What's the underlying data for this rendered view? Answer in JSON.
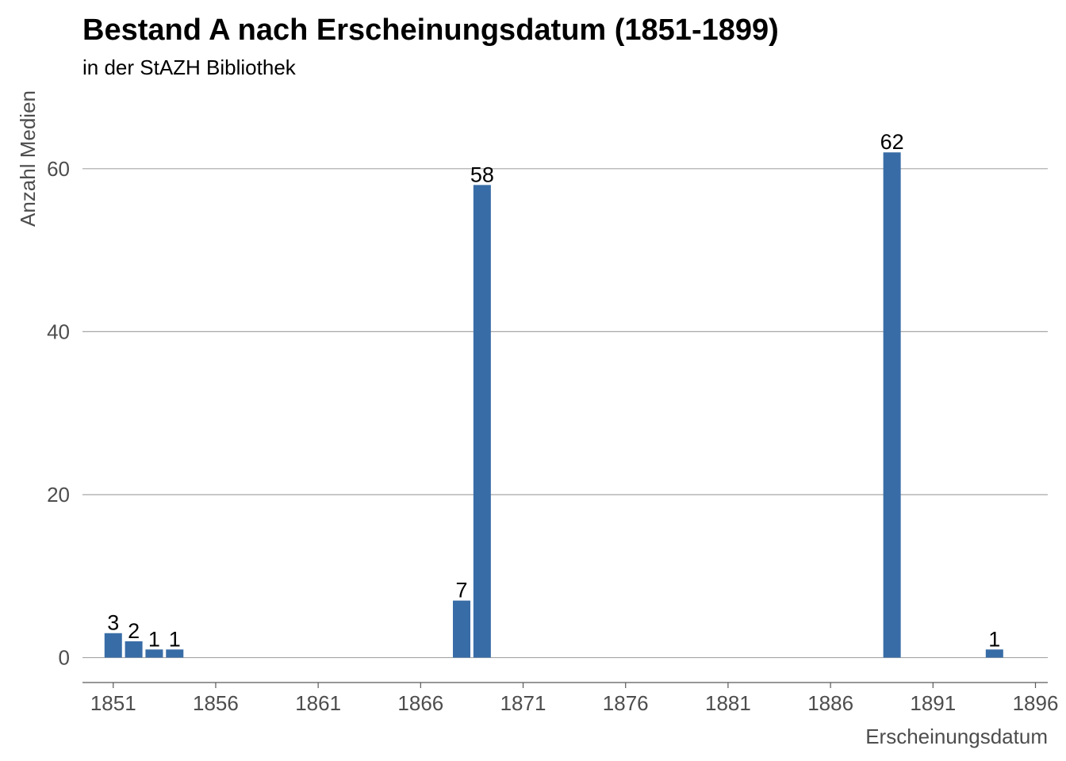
{
  "chart_data": {
    "type": "bar",
    "title": "Bestand A nach Erscheinungsdatum (1851-1899)",
    "subtitle": "in der StAZH Bibliothek",
    "xlabel": "Erscheinungsdatum",
    "ylabel": "Anzahl Medien",
    "x": [
      1851,
      1852,
      1853,
      1854,
      1868,
      1869,
      1889,
      1894
    ],
    "values": [
      3,
      2,
      1,
      1,
      7,
      58,
      62,
      1
    ],
    "data_labels": [
      "3",
      "2",
      "1",
      "1",
      "7",
      "58",
      "62",
      "1"
    ],
    "xlim": [
      1849.5,
      1896.6
    ],
    "ylim": [
      -1.5,
      70
    ],
    "x_ticks": [
      1851,
      1856,
      1861,
      1866,
      1871,
      1876,
      1881,
      1886,
      1891,
      1896
    ],
    "x_tick_labels": [
      "1851",
      "1856",
      "1861",
      "1866",
      "1871",
      "1876",
      "1881",
      "1886",
      "1891",
      "1896"
    ],
    "y_ticks": [
      0,
      20,
      40,
      60
    ],
    "y_tick_labels": [
      "0",
      "20",
      "40",
      "60"
    ],
    "grid": "horizontal",
    "legend": "none",
    "bar_color": "#386ca6",
    "gridline_color": "#a6a6a6",
    "axis_color": "#595959"
  }
}
